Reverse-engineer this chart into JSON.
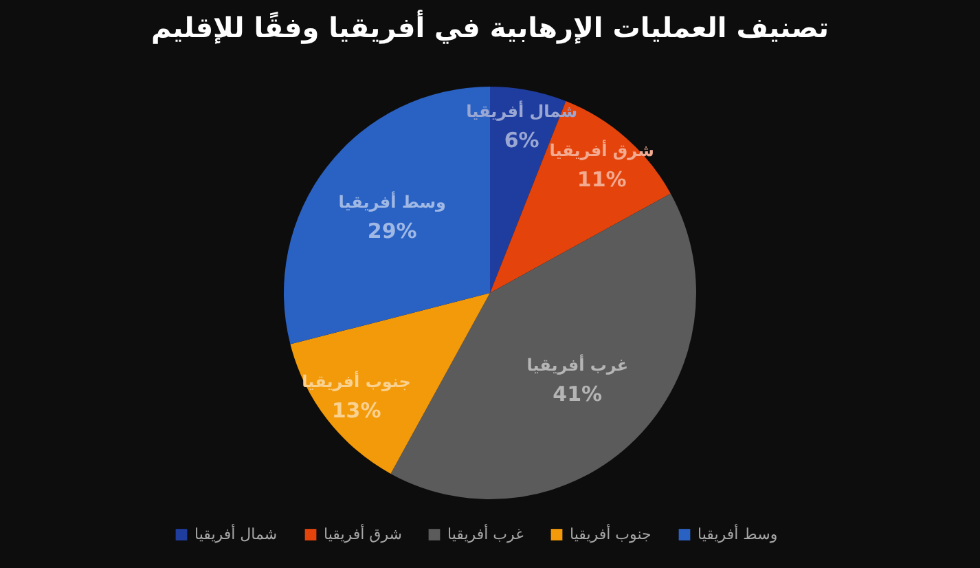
{
  "chart_data": {
    "type": "pie",
    "title": "تصنيف العمليات الإرهابية في أفريقيا وفقًا للإقليم",
    "categories": [
      "شمال أفريقيا",
      "شرق أفريقيا",
      "غرب أفريقيا",
      "جنوب أفريقيا",
      "وسط أفريقيا"
    ],
    "values": [
      6,
      11,
      41,
      13,
      29
    ],
    "value_labels": [
      "6%",
      "11%",
      "41%",
      "13%",
      "29%"
    ],
    "colors": [
      "#1f3d9e",
      "#e4440c",
      "#5b5b5b",
      "#f39a0a",
      "#2a62c4"
    ],
    "legend": "bottom"
  }
}
